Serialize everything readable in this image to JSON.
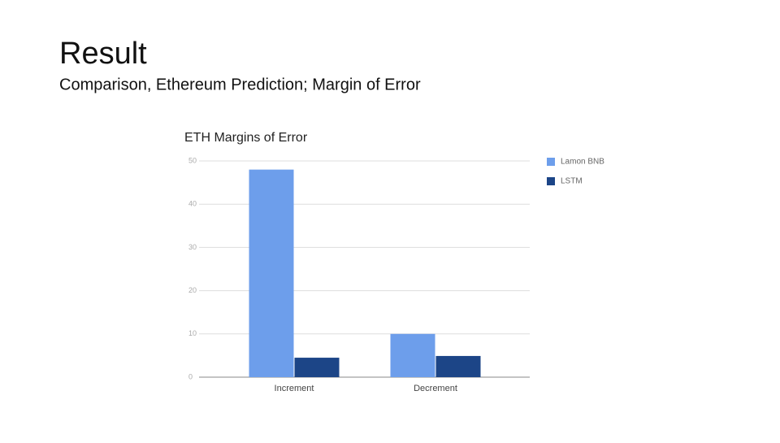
{
  "title": "Result",
  "subtitle": "Comparison, Ethereum Prediction; Margin of Error",
  "chart_data": {
    "type": "bar",
    "title": "ETH Margins of Error",
    "categories": [
      "Increment",
      "Decrement"
    ],
    "series": [
      {
        "name": "Lamon BNB",
        "color": "#6d9eeb",
        "values": [
          48,
          10
        ]
      },
      {
        "name": "LSTM",
        "color": "#1c4587",
        "values": [
          4.5,
          4.9
        ]
      }
    ],
    "ylim": [
      0,
      50
    ],
    "yticks": [
      0,
      10,
      20,
      30,
      40,
      50
    ],
    "grid": true,
    "legend": "right"
  }
}
